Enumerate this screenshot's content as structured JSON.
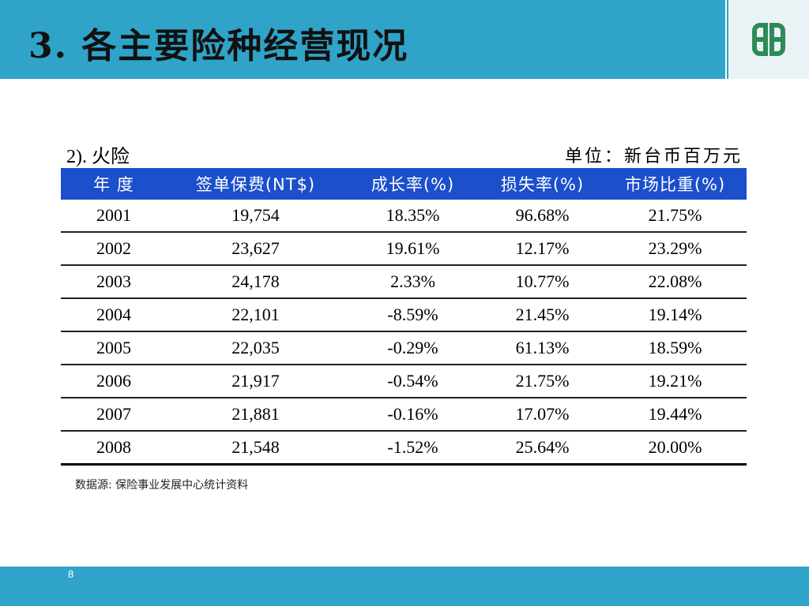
{
  "header": {
    "title": "3. 各主要险种经营现况",
    "logo_icon": "fubon-logo-icon"
  },
  "section": {
    "subtitle": "2). 火险",
    "unit": "单位：新台币百万元"
  },
  "chart_data": {
    "type": "table",
    "columns": [
      "年 度",
      "签单保费(NT$)",
      "成长率(%)",
      "损失率(%)",
      "市场比重(%)"
    ],
    "rows": [
      [
        "2001",
        "19,754",
        "18.35%",
        "96.68%",
        "21.75%"
      ],
      [
        "2002",
        "23,627",
        "19.61%",
        "12.17%",
        "23.29%"
      ],
      [
        "2003",
        "24,178",
        "2.33%",
        "10.77%",
        "22.08%"
      ],
      [
        "2004",
        "22,101",
        "-8.59%",
        "21.45%",
        "19.14%"
      ],
      [
        "2005",
        "22,035",
        "-0.29%",
        "61.13%",
        "18.59%"
      ],
      [
        "2006",
        "21,917",
        "-0.54%",
        "21.75%",
        "19.21%"
      ],
      [
        "2007",
        "21,881",
        "-0.16%",
        "17.07%",
        "19.44%"
      ],
      [
        "2008",
        "21,548",
        "-1.52%",
        "25.64%",
        "20.00%"
      ]
    ]
  },
  "footnote": "数据源: 保险事业发展中心统计资料",
  "page_number": "8",
  "colors": {
    "header_bg": "#2fa4c8",
    "table_header_bg": "#1b4fcc",
    "logo_green": "#2e8b57"
  }
}
